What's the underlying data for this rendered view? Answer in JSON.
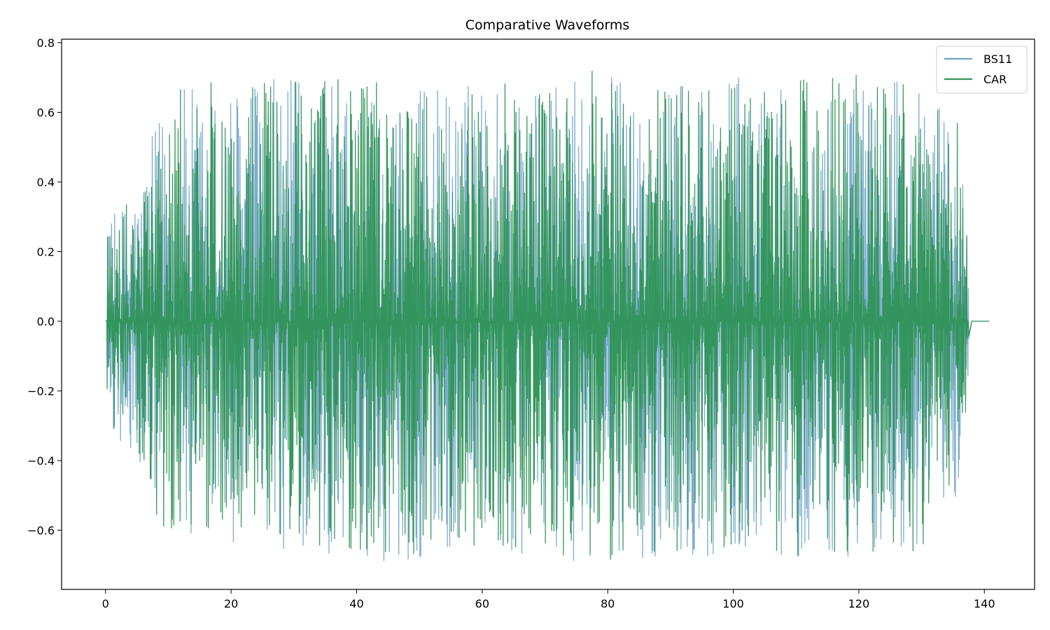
{
  "chart_data": {
    "type": "line",
    "title": "Comparative Waveforms",
    "xlabel": "",
    "ylabel": "",
    "xlim": [
      -7,
      148
    ],
    "ylim": [
      -0.77,
      0.81
    ],
    "x_ticks": [
      0,
      20,
      40,
      60,
      80,
      100,
      120,
      140
    ],
    "x_tick_labels": [
      "0",
      "20",
      "40",
      "60",
      "80",
      "100",
      "120",
      "140"
    ],
    "y_ticks": [
      -0.6,
      -0.4,
      -0.2,
      0.0,
      0.2,
      0.4,
      0.6,
      0.8
    ],
    "y_tick_labels": [
      "−0.6",
      "−0.4",
      "−0.2",
      "0.0",
      "0.2",
      "0.4",
      "0.6",
      "0.8"
    ],
    "grid": false,
    "legend_position": "top-right",
    "signal_start": 0.2,
    "signal_end": 137.5,
    "silence_end": 140.8,
    "series": [
      {
        "name": "BS11",
        "color": "#6fa3cc",
        "envelope": {
          "x": [
            0.2,
            5,
            10,
            20,
            30,
            40,
            50,
            60,
            70,
            80,
            90,
            100,
            110,
            120,
            130,
            136,
            137.5
          ],
          "upper": [
            0.28,
            0.4,
            0.67,
            0.7,
            0.7,
            0.69,
            0.68,
            0.7,
            0.67,
            0.73,
            0.68,
            0.7,
            0.7,
            0.71,
            0.68,
            0.6,
            0.18
          ],
          "lower": [
            -0.3,
            -0.45,
            -0.65,
            -0.64,
            -0.67,
            -0.69,
            -0.69,
            -0.67,
            -0.68,
            -0.7,
            -0.67,
            -0.68,
            -0.69,
            -0.7,
            -0.68,
            -0.5,
            -0.15
          ]
        }
      },
      {
        "name": "CAR",
        "color": "#2f9356",
        "envelope": {
          "x": [
            0.2,
            5,
            10,
            20,
            30,
            40,
            50,
            60,
            70,
            80,
            90,
            100,
            110,
            120,
            130,
            136,
            137.5
          ],
          "upper": [
            0.26,
            0.39,
            0.66,
            0.7,
            0.69,
            0.7,
            0.68,
            0.7,
            0.67,
            0.74,
            0.68,
            0.69,
            0.7,
            0.71,
            0.67,
            0.6,
            0.18
          ],
          "lower": [
            -0.28,
            -0.44,
            -0.63,
            -0.62,
            -0.65,
            -0.68,
            -0.69,
            -0.66,
            -0.67,
            -0.69,
            -0.66,
            -0.67,
            -0.68,
            -0.7,
            -0.67,
            -0.5,
            -0.15
          ]
        }
      }
    ]
  }
}
